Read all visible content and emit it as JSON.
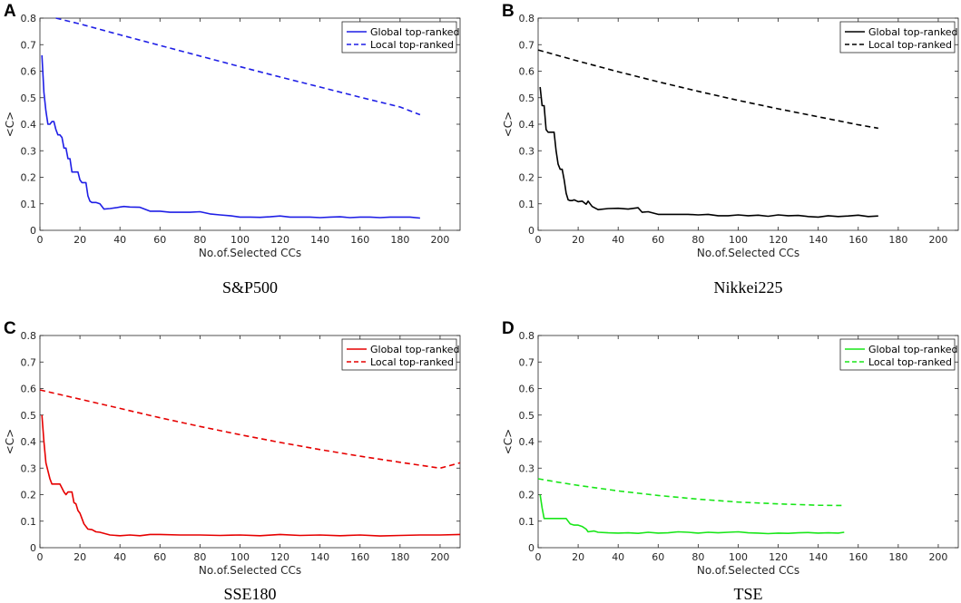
{
  "chart_data": [
    {
      "type": "line",
      "panel_label": "A",
      "caption": "S&P500",
      "xlabel": "No.of.Selected CCs",
      "ylabel": "<C>",
      "xlim": [
        0,
        210
      ],
      "ylim": [
        0,
        0.8
      ],
      "xticks": [
        0,
        20,
        40,
        60,
        80,
        100,
        120,
        140,
        160,
        180,
        200
      ],
      "yticks": [
        0,
        0.1,
        0.2,
        0.3,
        0.4,
        0.5,
        0.6,
        0.7,
        0.8
      ],
      "grid": false,
      "legend_position": "top-right",
      "color": "#1f1fe6",
      "series": [
        {
          "name": "Global top-ranked",
          "style": "solid",
          "x": [
            1,
            2,
            3,
            4,
            5,
            6,
            7,
            8,
            9,
            10,
            11,
            12,
            13,
            14,
            15,
            16,
            17,
            18,
            19,
            20,
            21,
            22,
            23,
            24,
            25,
            26,
            28,
            30,
            32,
            35,
            38,
            40,
            42,
            45,
            50,
            55,
            60,
            65,
            70,
            75,
            80,
            85,
            90,
            95,
            100,
            105,
            110,
            115,
            120,
            125,
            130,
            135,
            140,
            145,
            150,
            155,
            160,
            165,
            170,
            175,
            180,
            185,
            190
          ],
          "y": [
            0.66,
            0.52,
            0.45,
            0.4,
            0.4,
            0.41,
            0.41,
            0.38,
            0.36,
            0.36,
            0.35,
            0.31,
            0.31,
            0.27,
            0.27,
            0.22,
            0.22,
            0.22,
            0.22,
            0.19,
            0.18,
            0.18,
            0.18,
            0.13,
            0.11,
            0.105,
            0.105,
            0.1,
            0.08,
            0.082,
            0.085,
            0.088,
            0.09,
            0.088,
            0.087,
            0.072,
            0.072,
            0.068,
            0.068,
            0.068,
            0.07,
            0.062,
            0.058,
            0.055,
            0.05,
            0.05,
            0.049,
            0.051,
            0.054,
            0.05,
            0.05,
            0.05,
            0.048,
            0.05,
            0.051,
            0.048,
            0.05,
            0.05,
            0.048,
            0.05,
            0.05,
            0.05,
            0.046
          ]
        },
        {
          "name": "Local top-ranked",
          "style": "dashed",
          "x": [
            8,
            20,
            40,
            60,
            80,
            100,
            120,
            140,
            160,
            180,
            190
          ],
          "y": [
            0.8,
            0.778,
            0.737,
            0.697,
            0.657,
            0.617,
            0.578,
            0.54,
            0.502,
            0.465,
            0.436
          ]
        }
      ]
    },
    {
      "type": "line",
      "panel_label": "B",
      "caption": "Nikkei225",
      "xlabel": "No.of.Selected CCs",
      "ylabel": "<C>",
      "xlim": [
        0,
        210
      ],
      "ylim": [
        0,
        0.8
      ],
      "xticks": [
        0,
        20,
        40,
        60,
        80,
        100,
        120,
        140,
        160,
        180,
        200
      ],
      "yticks": [
        0,
        0.1,
        0.2,
        0.3,
        0.4,
        0.5,
        0.6,
        0.7,
        0.8
      ],
      "grid": false,
      "legend_position": "top-right",
      "color": "#000000",
      "series": [
        {
          "name": "Global top-ranked",
          "style": "solid",
          "x": [
            1,
            2,
            3,
            4,
            5,
            6,
            7,
            8,
            9,
            10,
            11,
            12,
            13,
            14,
            15,
            16,
            17,
            18,
            20,
            22,
            24,
            25,
            27,
            30,
            35,
            40,
            45,
            50,
            52,
            55,
            60,
            65,
            70,
            75,
            80,
            85,
            90,
            95,
            100,
            105,
            110,
            115,
            120,
            125,
            130,
            135,
            140,
            145,
            150,
            155,
            160,
            165,
            170
          ],
          "y": [
            0.54,
            0.47,
            0.47,
            0.38,
            0.37,
            0.37,
            0.37,
            0.37,
            0.3,
            0.25,
            0.23,
            0.23,
            0.19,
            0.14,
            0.115,
            0.112,
            0.112,
            0.115,
            0.108,
            0.11,
            0.098,
            0.11,
            0.09,
            0.078,
            0.082,
            0.083,
            0.08,
            0.085,
            0.068,
            0.07,
            0.06,
            0.06,
            0.06,
            0.06,
            0.058,
            0.06,
            0.055,
            0.055,
            0.058,
            0.055,
            0.057,
            0.053,
            0.058,
            0.055,
            0.056,
            0.052,
            0.05,
            0.055,
            0.052,
            0.054,
            0.057,
            0.052,
            0.054
          ]
        },
        {
          "name": "Local top-ranked",
          "style": "dashed",
          "x": [
            0,
            20,
            40,
            60,
            80,
            100,
            120,
            140,
            160,
            170
          ],
          "y": [
            0.68,
            0.638,
            0.598,
            0.56,
            0.524,
            0.49,
            0.458,
            0.428,
            0.398,
            0.385
          ]
        }
      ]
    },
    {
      "type": "line",
      "panel_label": "C",
      "caption": "SSE180",
      "xlabel": "No.of.Selected CCs",
      "ylabel": "<C>",
      "xlim": [
        0,
        210
      ],
      "ylim": [
        0,
        0.8
      ],
      "xticks": [
        0,
        20,
        40,
        60,
        80,
        100,
        120,
        140,
        160,
        180,
        200
      ],
      "yticks": [
        0,
        0.1,
        0.2,
        0.3,
        0.4,
        0.5,
        0.6,
        0.7,
        0.8
      ],
      "grid": false,
      "legend_position": "top-right",
      "color": "#e60000",
      "series": [
        {
          "name": "Global top-ranked",
          "style": "solid",
          "x": [
            1,
            2,
            3,
            4,
            5,
            6,
            7,
            8,
            10,
            12,
            13,
            14,
            16,
            17,
            18,
            19,
            20,
            21,
            22,
            24,
            26,
            28,
            30,
            35,
            40,
            45,
            50,
            55,
            60,
            70,
            80,
            90,
            100,
            110,
            120,
            130,
            140,
            150,
            160,
            170,
            180,
            190,
            200,
            210
          ],
          "y": [
            0.5,
            0.4,
            0.32,
            0.29,
            0.26,
            0.24,
            0.24,
            0.24,
            0.24,
            0.21,
            0.2,
            0.21,
            0.21,
            0.17,
            0.165,
            0.14,
            0.13,
            0.11,
            0.09,
            0.07,
            0.068,
            0.06,
            0.058,
            0.048,
            0.045,
            0.048,
            0.045,
            0.05,
            0.05,
            0.048,
            0.048,
            0.046,
            0.048,
            0.045,
            0.05,
            0.046,
            0.048,
            0.045,
            0.048,
            0.044,
            0.046,
            0.048,
            0.048,
            0.05
          ]
        },
        {
          "name": "Local top-ranked",
          "style": "dashed",
          "x": [
            0,
            20,
            40,
            60,
            80,
            100,
            120,
            140,
            160,
            180,
            200,
            210
          ],
          "y": [
            0.595,
            0.56,
            0.525,
            0.49,
            0.457,
            0.426,
            0.397,
            0.37,
            0.345,
            0.322,
            0.3,
            0.32
          ]
        }
      ]
    },
    {
      "type": "line",
      "panel_label": "D",
      "caption": "TSE",
      "xlabel": "No.of.Selected CCs",
      "ylabel": "<C>",
      "xlim": [
        0,
        210
      ],
      "ylim": [
        0,
        0.8
      ],
      "xticks": [
        0,
        20,
        40,
        60,
        80,
        100,
        120,
        140,
        160,
        180,
        200
      ],
      "yticks": [
        0,
        0.1,
        0.2,
        0.3,
        0.4,
        0.5,
        0.6,
        0.7,
        0.8
      ],
      "grid": false,
      "legend_position": "top-right",
      "color": "#19e619",
      "series": [
        {
          "name": "Global top-ranked",
          "style": "solid",
          "x": [
            1,
            2,
            3,
            4,
            5,
            6,
            8,
            10,
            12,
            14,
            15,
            16,
            18,
            20,
            22,
            24,
            25,
            28,
            30,
            35,
            40,
            45,
            50,
            55,
            60,
            65,
            70,
            75,
            80,
            85,
            90,
            95,
            100,
            105,
            110,
            115,
            120,
            125,
            130,
            135,
            140,
            145,
            150,
            153
          ],
          "y": [
            0.2,
            0.15,
            0.11,
            0.11,
            0.11,
            0.11,
            0.11,
            0.11,
            0.11,
            0.11,
            0.1,
            0.09,
            0.085,
            0.085,
            0.08,
            0.07,
            0.06,
            0.063,
            0.058,
            0.056,
            0.055,
            0.056,
            0.054,
            0.058,
            0.055,
            0.056,
            0.06,
            0.058,
            0.055,
            0.058,
            0.056,
            0.058,
            0.06,
            0.056,
            0.055,
            0.053,
            0.055,
            0.054,
            0.056,
            0.057,
            0.055,
            0.056,
            0.055,
            0.058
          ]
        },
        {
          "name": "Local top-ranked",
          "style": "dashed",
          "x": [
            0,
            10,
            20,
            40,
            60,
            80,
            100,
            120,
            140,
            153
          ],
          "y": [
            0.26,
            0.247,
            0.235,
            0.214,
            0.197,
            0.183,
            0.172,
            0.165,
            0.16,
            0.159
          ]
        }
      ]
    }
  ]
}
